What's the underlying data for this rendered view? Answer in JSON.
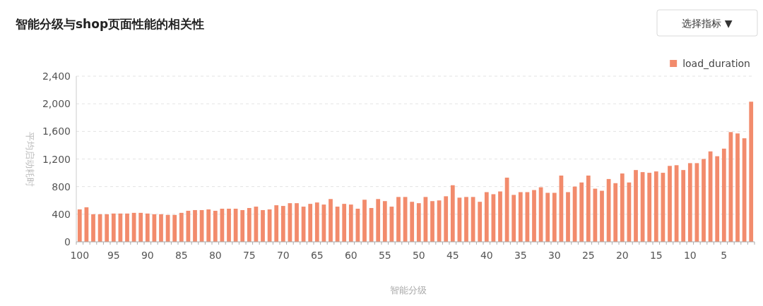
{
  "chart_data": {
    "type": "bar",
    "title": "智能分级与shop页面性能的相关性",
    "xlabel": "智能分级",
    "ylabel": "平均启动耗时",
    "annotations": [
      "选择指标 ▼"
    ],
    "categories": [
      "100",
      null,
      null,
      null,
      null,
      "95",
      null,
      null,
      null,
      null,
      "90",
      null,
      null,
      null,
      null,
      "85",
      null,
      null,
      null,
      null,
      "80",
      null,
      null,
      null,
      null,
      "75",
      null,
      null,
      null,
      null,
      "70",
      null,
      null,
      null,
      null,
      "65",
      null,
      null,
      null,
      null,
      "60",
      null,
      null,
      null,
      null,
      "55",
      null,
      null,
      null,
      null,
      "50",
      null,
      null,
      null,
      null,
      "45",
      null,
      null,
      null,
      null,
      "40",
      null,
      null,
      null,
      null,
      "35",
      null,
      null,
      null,
      null,
      "30",
      null,
      null,
      null,
      null,
      "25",
      null,
      null,
      null,
      null,
      "20",
      null,
      null,
      null,
      null,
      "15",
      null,
      null,
      null,
      null,
      "10",
      null,
      null,
      null,
      null,
      "5",
      null,
      null,
      null,
      null
    ],
    "series": [
      {
        "name": "load_duration",
        "color": "#f28b6c",
        "values": [
          470,
          500,
          400,
          400,
          400,
          410,
          410,
          410,
          420,
          420,
          410,
          400,
          400,
          390,
          390,
          420,
          450,
          460,
          460,
          470,
          450,
          480,
          480,
          480,
          460,
          490,
          510,
          460,
          470,
          530,
          520,
          560,
          560,
          510,
          550,
          570,
          540,
          620,
          510,
          550,
          540,
          480,
          610,
          490,
          620,
          590,
          510,
          650,
          650,
          580,
          560,
          650,
          590,
          600,
          660,
          820,
          640,
          650,
          650,
          580,
          720,
          690,
          730,
          930,
          680,
          720,
          720,
          750,
          790,
          710,
          710,
          960,
          720,
          800,
          860,
          960,
          770,
          740,
          910,
          850,
          990,
          860,
          1040,
          1010,
          1000,
          1020,
          1000,
          1100,
          1110,
          1040,
          1140,
          1140,
          1200,
          1310,
          1240,
          1350,
          1590,
          1570,
          1500,
          2030
        ]
      }
    ],
    "ylim": [
      0,
      2400
    ],
    "yticks": [
      0,
      400,
      800,
      {
        "value": 1200,
        "label": "1,200"
      },
      {
        "value": 1600,
        "label": "1,600"
      },
      {
        "value": 2000,
        "label": "2,000"
      },
      {
        "value": 2400,
        "label": "2,400"
      }
    ],
    "grid": "y",
    "legend": "top right"
  }
}
